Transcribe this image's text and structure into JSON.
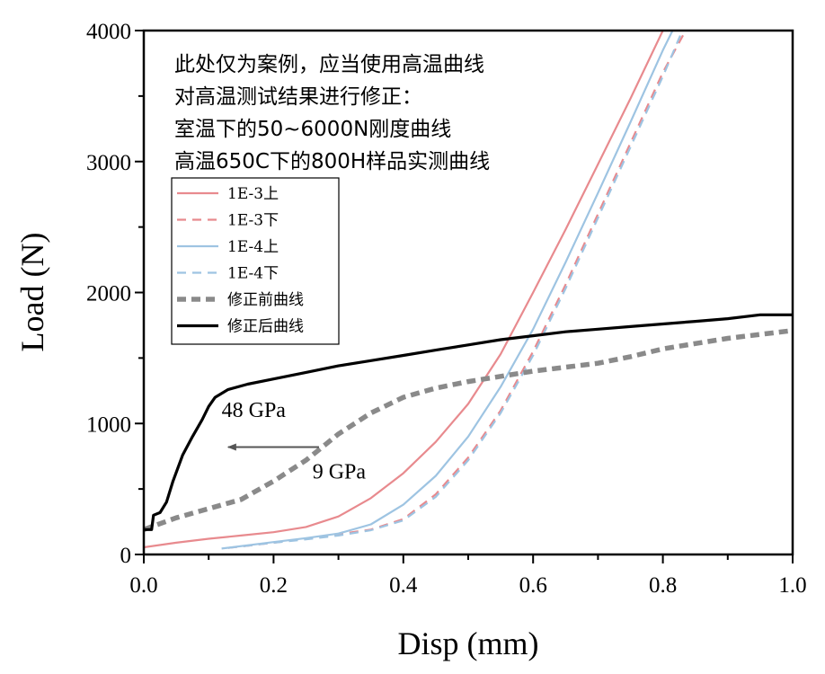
{
  "chart_data": {
    "type": "line",
    "xlabel": "Disp (mm)",
    "ylabel": "Load (N)",
    "xlim": [
      0.0,
      1.0
    ],
    "ylim": [
      0,
      4000
    ],
    "xticks": [
      "0.0",
      "0.2",
      "0.4",
      "0.6",
      "0.8",
      "1.0"
    ],
    "yticks": [
      "0",
      "1000",
      "2000",
      "3000",
      "4000"
    ],
    "grid": false,
    "legend_position": "top-left",
    "notes": [
      "此处仅为案例，应当使用高温曲线",
      "对高温测试结果进行修正：",
      "室温下的50~6000N刚度曲线",
      "高温650C下的800H样品实测曲线"
    ],
    "annotations": [
      {
        "text": "48 GPa",
        "x": 0.12,
        "y": 1050
      },
      {
        "text": "9 GPa",
        "x": 0.26,
        "y": 580
      }
    ],
    "arrow": {
      "from": [
        0.27,
        820
      ],
      "to": [
        0.13,
        820
      ]
    },
    "series": [
      {
        "name": "1E-3上",
        "color": "#e88a8e",
        "dash": "solid",
        "points": [
          [
            0.0,
            55
          ],
          [
            0.05,
            90
          ],
          [
            0.1,
            120
          ],
          [
            0.15,
            145
          ],
          [
            0.2,
            170
          ],
          [
            0.25,
            210
          ],
          [
            0.3,
            290
          ],
          [
            0.35,
            430
          ],
          [
            0.4,
            620
          ],
          [
            0.45,
            860
          ],
          [
            0.5,
            1150
          ],
          [
            0.55,
            1530
          ],
          [
            0.6,
            2000
          ],
          [
            0.65,
            2480
          ],
          [
            0.7,
            2980
          ],
          [
            0.75,
            3480
          ],
          [
            0.8,
            4000
          ]
        ]
      },
      {
        "name": "1E-3下",
        "color": "#e88a8e",
        "dash": "dashed",
        "points": [
          [
            0.13,
            50
          ],
          [
            0.2,
            90
          ],
          [
            0.25,
            120
          ],
          [
            0.3,
            155
          ],
          [
            0.35,
            190
          ],
          [
            0.4,
            270
          ],
          [
            0.45,
            460
          ],
          [
            0.5,
            740
          ],
          [
            0.55,
            1100
          ],
          [
            0.6,
            1550
          ],
          [
            0.65,
            2060
          ],
          [
            0.7,
            2600
          ],
          [
            0.75,
            3140
          ],
          [
            0.8,
            3680
          ],
          [
            0.835,
            4000
          ]
        ]
      },
      {
        "name": "1E-4上",
        "color": "#9ec4e2",
        "dash": "solid",
        "points": [
          [
            0.12,
            45
          ],
          [
            0.2,
            95
          ],
          [
            0.25,
            125
          ],
          [
            0.3,
            160
          ],
          [
            0.35,
            230
          ],
          [
            0.4,
            380
          ],
          [
            0.45,
            600
          ],
          [
            0.5,
            900
          ],
          [
            0.55,
            1280
          ],
          [
            0.6,
            1720
          ],
          [
            0.65,
            2230
          ],
          [
            0.7,
            2760
          ],
          [
            0.75,
            3300
          ],
          [
            0.8,
            3850
          ],
          [
            0.815,
            4000
          ]
        ]
      },
      {
        "name": "1E-4下",
        "color": "#9ec4e2",
        "dash": "dashed",
        "points": [
          [
            0.13,
            50
          ],
          [
            0.2,
            90
          ],
          [
            0.25,
            115
          ],
          [
            0.3,
            145
          ],
          [
            0.35,
            185
          ],
          [
            0.4,
            260
          ],
          [
            0.45,
            440
          ],
          [
            0.5,
            720
          ],
          [
            0.55,
            1080
          ],
          [
            0.6,
            1520
          ],
          [
            0.65,
            2030
          ],
          [
            0.7,
            2570
          ],
          [
            0.75,
            3110
          ],
          [
            0.8,
            3650
          ],
          [
            0.83,
            4000
          ]
        ]
      },
      {
        "name": "修正前曲线",
        "color": "#8a8a8a",
        "dash": "thick-dashed",
        "points": [
          [
            0.0,
            190
          ],
          [
            0.05,
            280
          ],
          [
            0.1,
            350
          ],
          [
            0.15,
            420
          ],
          [
            0.2,
            560
          ],
          [
            0.25,
            720
          ],
          [
            0.28,
            840
          ],
          [
            0.3,
            920
          ],
          [
            0.35,
            1080
          ],
          [
            0.4,
            1200
          ],
          [
            0.45,
            1270
          ],
          [
            0.5,
            1320
          ],
          [
            0.55,
            1360
          ],
          [
            0.6,
            1400
          ],
          [
            0.65,
            1430
          ],
          [
            0.7,
            1460
          ],
          [
            0.75,
            1510
          ],
          [
            0.8,
            1570
          ],
          [
            0.85,
            1610
          ],
          [
            0.9,
            1650
          ],
          [
            0.95,
            1680
          ],
          [
            1.0,
            1710
          ]
        ]
      },
      {
        "name": "修正后曲线",
        "color": "#000000",
        "dash": "solid",
        "points": [
          [
            0.0,
            190
          ],
          [
            0.012,
            190
          ],
          [
            0.015,
            300
          ],
          [
            0.025,
            320
          ],
          [
            0.035,
            400
          ],
          [
            0.045,
            560
          ],
          [
            0.06,
            760
          ],
          [
            0.075,
            900
          ],
          [
            0.09,
            1030
          ],
          [
            0.1,
            1130
          ],
          [
            0.11,
            1200
          ],
          [
            0.13,
            1260
          ],
          [
            0.16,
            1300
          ],
          [
            0.2,
            1340
          ],
          [
            0.25,
            1390
          ],
          [
            0.3,
            1440
          ],
          [
            0.35,
            1480
          ],
          [
            0.4,
            1520
          ],
          [
            0.45,
            1560
          ],
          [
            0.5,
            1600
          ],
          [
            0.55,
            1640
          ],
          [
            0.6,
            1670
          ],
          [
            0.65,
            1700
          ],
          [
            0.7,
            1720
          ],
          [
            0.75,
            1740
          ],
          [
            0.8,
            1760
          ],
          [
            0.85,
            1780
          ],
          [
            0.9,
            1800
          ],
          [
            0.95,
            1830
          ],
          [
            1.0,
            1830
          ]
        ]
      }
    ]
  }
}
